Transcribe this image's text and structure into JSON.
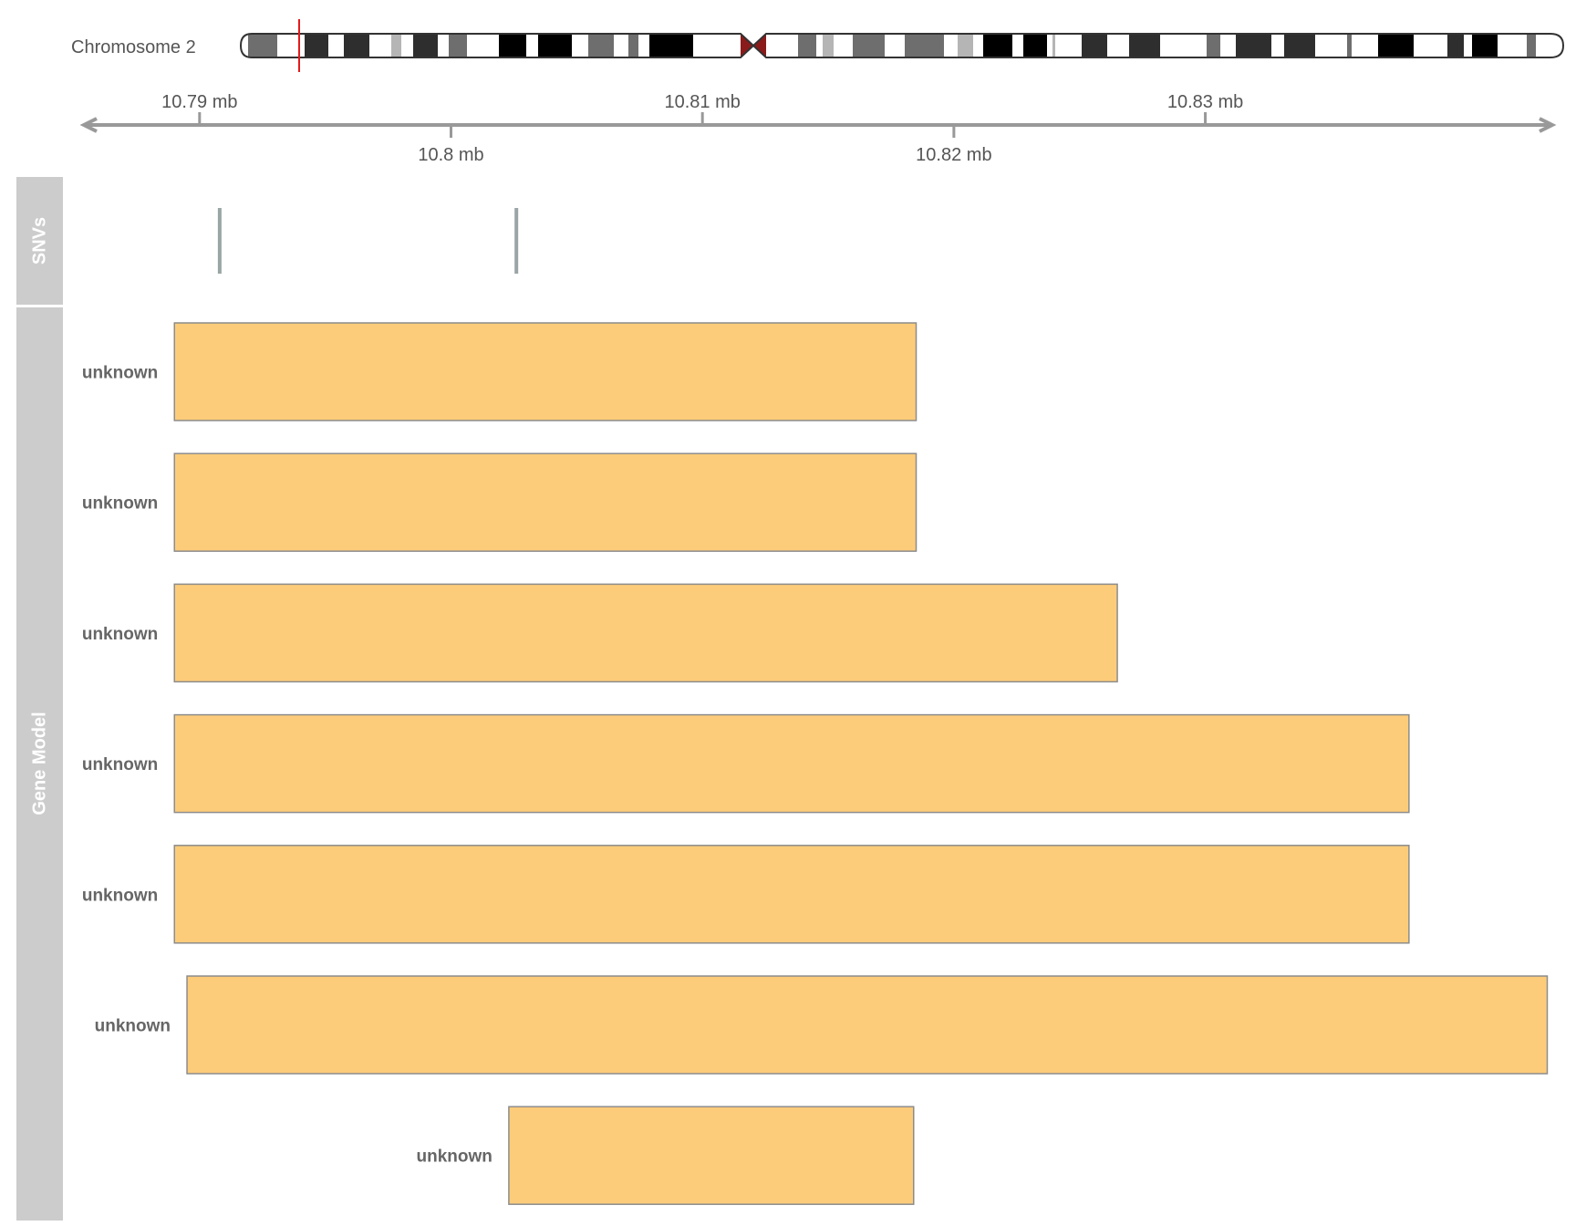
{
  "ideogram": {
    "chromosome_label": "Chromosome 2",
    "highlight_color": "#e41a1c"
  },
  "axis": {
    "unit": "mb",
    "range_mb": [
      10.7854,
      10.8438
    ],
    "ticks": [
      {
        "value": 10.79,
        "label": "10.79 mb"
      },
      {
        "value": 10.8,
        "label": "10.8 mb"
      },
      {
        "value": 10.81,
        "label": "10.81 mb"
      },
      {
        "value": 10.82,
        "label": "10.82 mb"
      },
      {
        "value": 10.83,
        "label": "10.83 mb"
      }
    ]
  },
  "tracks": {
    "snv": {
      "title": "SNVs",
      "color": "#9aa5a5",
      "positions_mb": [
        10.7908,
        10.8026
      ]
    },
    "gene_model": {
      "title": "Gene Model",
      "fill": "#fdcc7a",
      "stroke": "#8c8c8c",
      "features": [
        {
          "label": "unknown",
          "start_mb": 10.789,
          "end_mb": 10.8185
        },
        {
          "label": "unknown",
          "start_mb": 10.789,
          "end_mb": 10.8185
        },
        {
          "label": "unknown",
          "start_mb": 10.789,
          "end_mb": 10.8265
        },
        {
          "label": "unknown",
          "start_mb": 10.789,
          "end_mb": 10.8381
        },
        {
          "label": "unknown",
          "start_mb": 10.789,
          "end_mb": 10.8381
        },
        {
          "label": "unknown",
          "start_mb": 10.7895,
          "end_mb": 10.8436
        },
        {
          "label": "unknown",
          "start_mb": 10.8023,
          "end_mb": 10.8184
        }
      ]
    }
  },
  "colors": {
    "panel_bg": "#cccccc",
    "panel_text": "#ffffff",
    "axis": "#999999",
    "axis_text": "#555555",
    "feature_label": "#666666"
  }
}
